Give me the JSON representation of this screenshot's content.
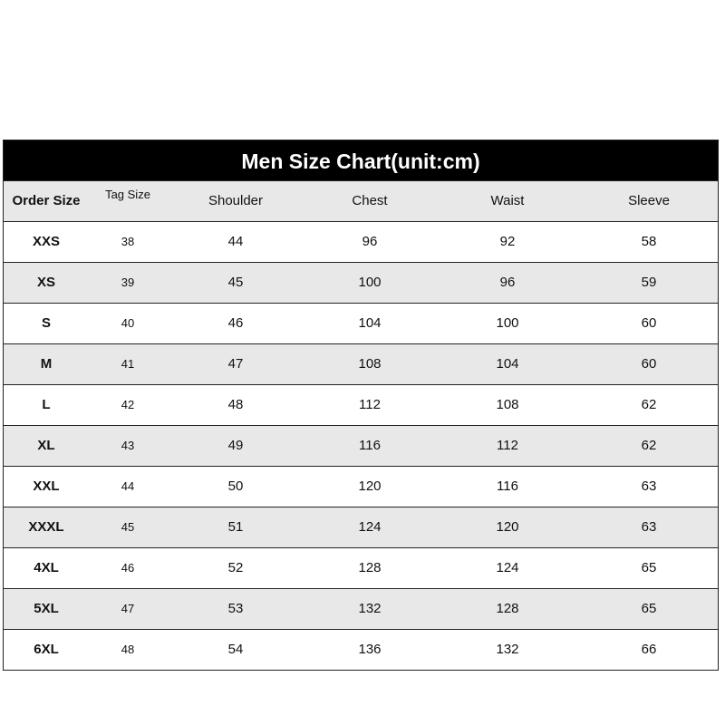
{
  "title": "Men Size Chart(unit:cm)",
  "headers": [
    "Order Size",
    "Tag Size",
    "Shoulder",
    "Chest",
    "Waist",
    "Sleeve"
  ],
  "rows": [
    [
      "XXS",
      "38",
      "44",
      "96",
      "92",
      "58"
    ],
    [
      "XS",
      "39",
      "45",
      "100",
      "96",
      "59"
    ],
    [
      "S",
      "40",
      "46",
      "104",
      "100",
      "60"
    ],
    [
      "M",
      "41",
      "47",
      "108",
      "104",
      "60"
    ],
    [
      "L",
      "42",
      "48",
      "112",
      "108",
      "62"
    ],
    [
      "XL",
      "43",
      "49",
      "116",
      "112",
      "62"
    ],
    [
      "XXL",
      "44",
      "50",
      "120",
      "116",
      "63"
    ],
    [
      "XXXL",
      "45",
      "51",
      "124",
      "120",
      "63"
    ],
    [
      "4XL",
      "46",
      "52",
      "128",
      "124",
      "65"
    ],
    [
      "5XL",
      "47",
      "53",
      "132",
      "128",
      "65"
    ],
    [
      "6XL",
      "48",
      "54",
      "136",
      "132",
      "66"
    ]
  ]
}
